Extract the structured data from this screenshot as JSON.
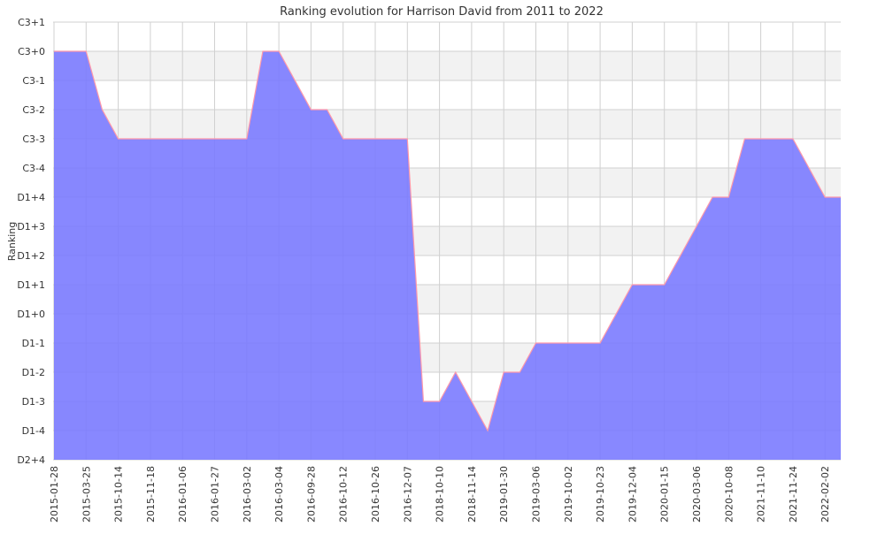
{
  "chart_data": {
    "type": "area",
    "title": "Ranking evolution for Harrison David from 2011 to 2022",
    "xlabel": "",
    "ylabel": "Ranking",
    "y_levels": [
      "D2+4",
      "D1-4",
      "D1-3",
      "D1-2",
      "D1-1",
      "D1+0",
      "D1+1",
      "D1+2",
      "D1+3",
      "D1+4",
      "C3-4",
      "C3-3",
      "C3-2",
      "C3-1",
      "C3+0",
      "C3+1"
    ],
    "x_tick_labels": [
      "2015-01-28",
      "2015-03-25",
      "2015-10-14",
      "2015-11-18",
      "2016-01-06",
      "2016-01-27",
      "2016-03-02",
      "2016-03-04",
      "2016-09-28",
      "2016-10-12",
      "2016-10-26",
      "2016-12-07",
      "2018-10-10",
      "2018-11-14",
      "2019-01-30",
      "2019-03-06",
      "2019-10-02",
      "2019-10-23",
      "2019-12-04",
      "2020-01-15",
      "2020-03-06",
      "2020-10-08",
      "2021-11-10",
      "2021-11-24",
      "2022-02-02"
    ],
    "grid": true,
    "background_bands": "alternating",
    "colors": {
      "fill": "#7777ff",
      "line": "#ff99aa",
      "band": "#f2f2f2",
      "grid": "#d0d0d0"
    },
    "series": [
      {
        "values": [
          {
            "x": 0,
            "y": "C3+0"
          },
          {
            "x": 1,
            "y": "C3+0"
          },
          {
            "x": 1.5,
            "y": "C3-2"
          },
          {
            "x": 2,
            "y": "C3-3"
          },
          {
            "x": 3,
            "y": "C3-3"
          },
          {
            "x": 4,
            "y": "C3-3"
          },
          {
            "x": 5,
            "y": "C3-3"
          },
          {
            "x": 6,
            "y": "C3-3"
          },
          {
            "x": 6.5,
            "y": "C3+0"
          },
          {
            "x": 7,
            "y": "C3+0"
          },
          {
            "x": 8,
            "y": "C3-2"
          },
          {
            "x": 8.5,
            "y": "C3-2"
          },
          {
            "x": 9,
            "y": "C3-3"
          },
          {
            "x": 10,
            "y": "C3-3"
          },
          {
            "x": 11,
            "y": "C3-3"
          },
          {
            "x": 11.5,
            "y": "D1-3"
          },
          {
            "x": 12,
            "y": "D1-3"
          },
          {
            "x": 12.5,
            "y": "D1-2"
          },
          {
            "x": 13,
            "y": "D1-3"
          },
          {
            "x": 13.5,
            "y": "D1-4"
          },
          {
            "x": 14,
            "y": "D1-2"
          },
          {
            "x": 14.5,
            "y": "D1-2"
          },
          {
            "x": 15,
            "y": "D1-1"
          },
          {
            "x": 16,
            "y": "D1-1"
          },
          {
            "x": 17,
            "y": "D1-1"
          },
          {
            "x": 18,
            "y": "D1+1"
          },
          {
            "x": 19,
            "y": "D1+1"
          },
          {
            "x": 20,
            "y": "D1+3"
          },
          {
            "x": 20.5,
            "y": "D1+4"
          },
          {
            "x": 21,
            "y": "D1+4"
          },
          {
            "x": 21.5,
            "y": "C3-3"
          },
          {
            "x": 22,
            "y": "C3-3"
          },
          {
            "x": 23,
            "y": "C3-3"
          },
          {
            "x": 24,
            "y": "D1+4"
          },
          {
            "x": 24.5,
            "y": "D1+4"
          }
        ]
      }
    ]
  }
}
